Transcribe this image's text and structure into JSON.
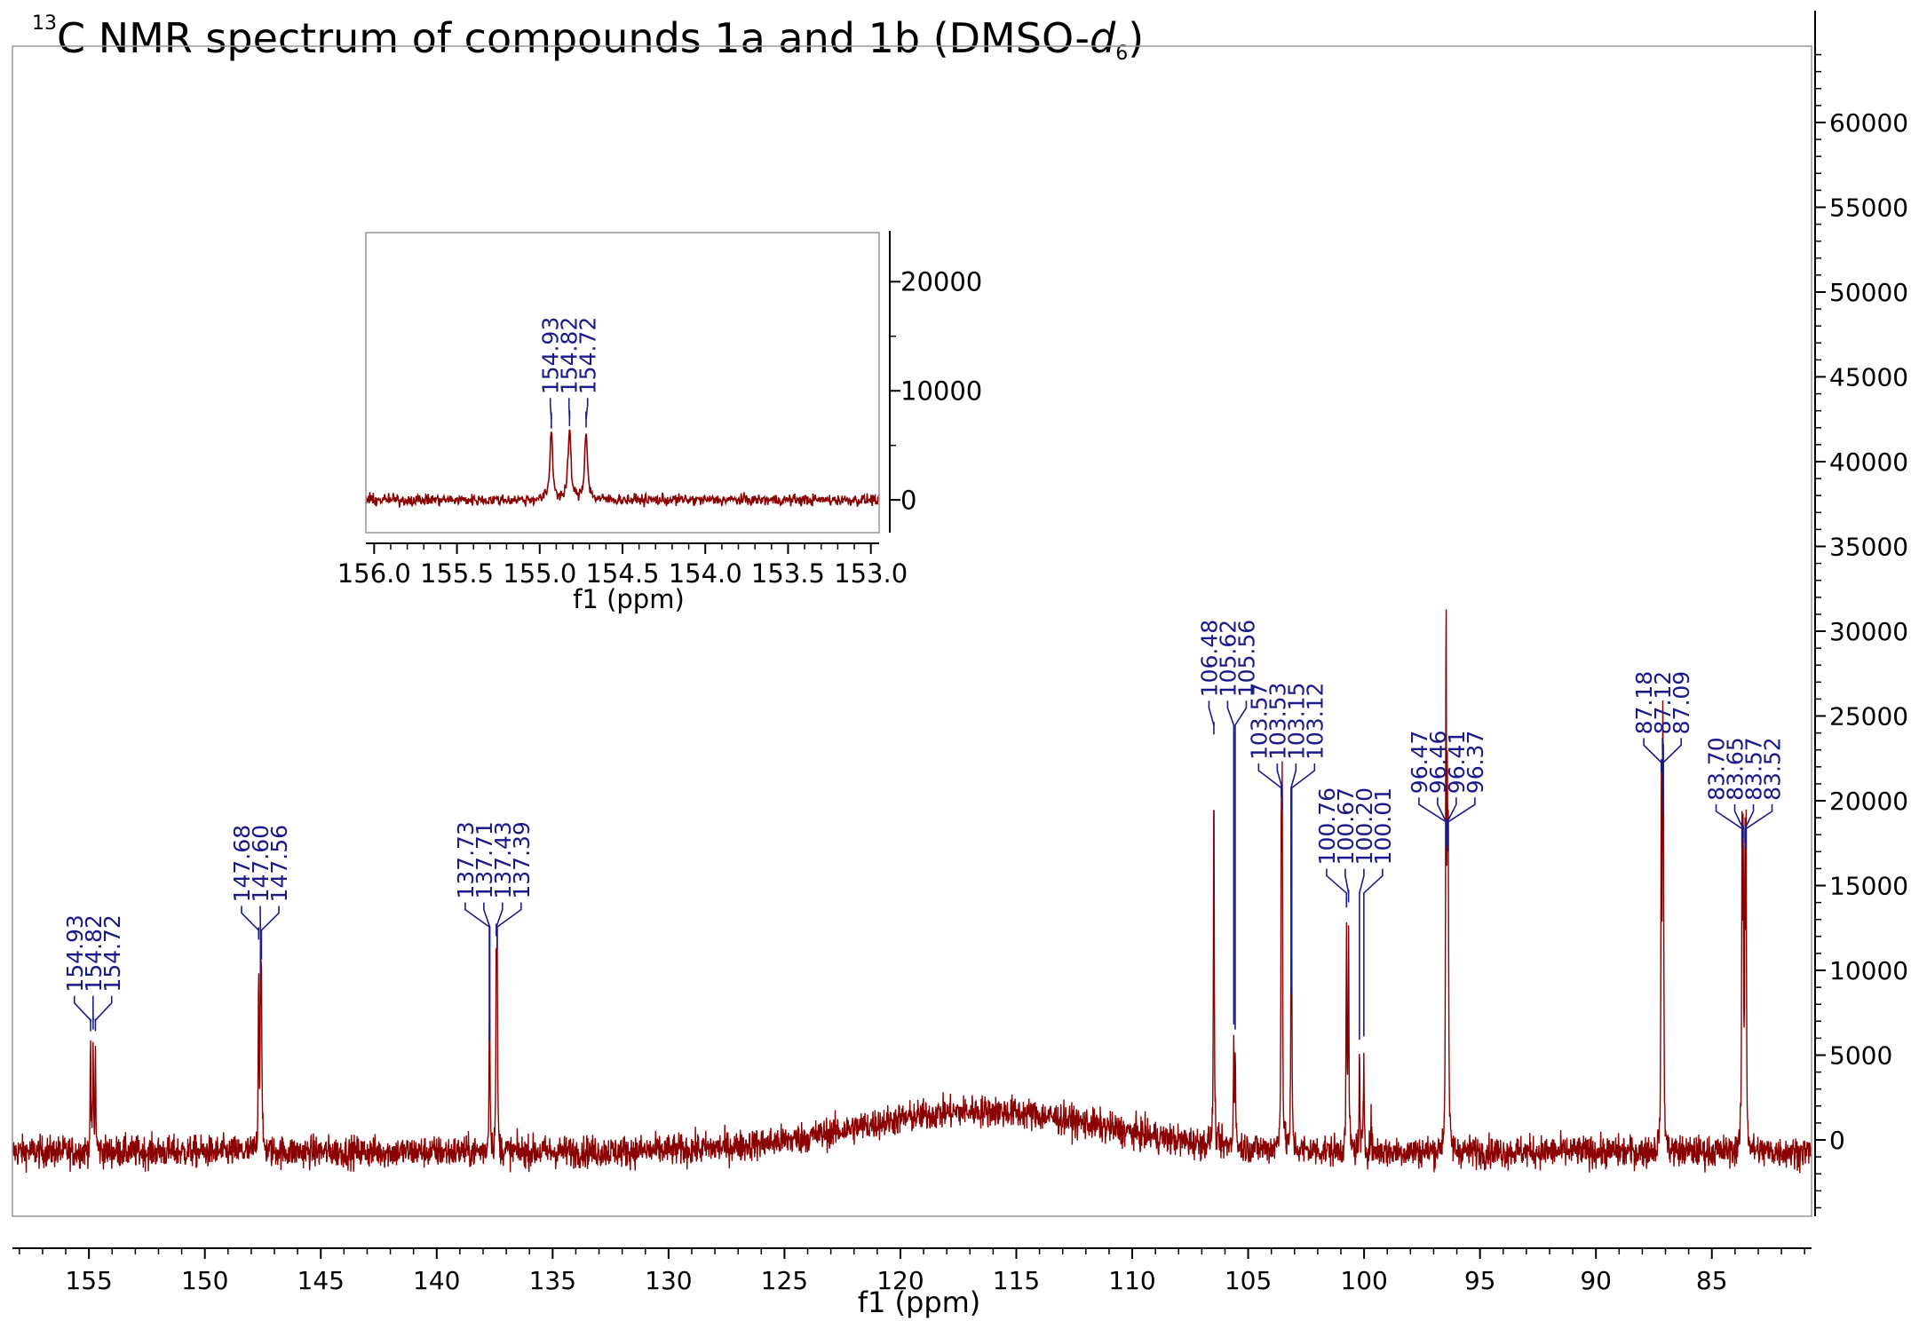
{
  "title": {
    "superscript": "13",
    "main": "C NMR spectrum of compounds 1a and 1b (DMSO-",
    "italic": "d",
    "subscript": "6",
    "close": ")"
  },
  "colors": {
    "spectrum": "#8b0000",
    "peak_labels": "#1a1a8c",
    "axis": "#000000"
  },
  "chart_data": [
    {
      "type": "line",
      "name": "main-spectrum",
      "xlabel": "f1 (ppm)",
      "ylabel": "",
      "x_reversed": true,
      "xlim": [
        158.3,
        80.7
      ],
      "ylim": [
        -4500,
        64500
      ],
      "x_ticks": [
        155,
        150,
        145,
        140,
        135,
        130,
        125,
        120,
        115,
        110,
        105,
        100,
        95,
        90,
        85
      ],
      "y_ticks": [
        0,
        5000,
        10000,
        15000,
        20000,
        25000,
        30000,
        35000,
        40000,
        45000,
        50000,
        55000,
        60000
      ],
      "baseline": {
        "noise": 900,
        "hump_center": 116.5,
        "hump_height": 2400,
        "hump_width": 7.5
      },
      "peaks": [
        {
          "ppm": 154.93,
          "height": 6200
        },
        {
          "ppm": 154.82,
          "height": 6300
        },
        {
          "ppm": 154.72,
          "height": 6200
        },
        {
          "ppm": 147.68,
          "height": 11600
        },
        {
          "ppm": 147.6,
          "height": 9200
        },
        {
          "ppm": 147.56,
          "height": 10400
        },
        {
          "ppm": 137.73,
          "height": 5600
        },
        {
          "ppm": 137.71,
          "height": 5800
        },
        {
          "ppm": 137.43,
          "height": 11800
        },
        {
          "ppm": 137.39,
          "height": 11000
        },
        {
          "ppm": 106.48,
          "height": 23700
        },
        {
          "ppm": 105.62,
          "height": 6600
        },
        {
          "ppm": 105.56,
          "height": 6300
        },
        {
          "ppm": 103.57,
          "height": 20000
        },
        {
          "ppm": 103.53,
          "height": 19200
        },
        {
          "ppm": 103.15,
          "height": 9200
        },
        {
          "ppm": 103.12,
          "height": 8400
        },
        {
          "ppm": 100.76,
          "height": 13500
        },
        {
          "ppm": 100.67,
          "height": 13800
        },
        {
          "ppm": 100.2,
          "height": 5700
        },
        {
          "ppm": 100.01,
          "height": 5900
        },
        {
          "ppm": 99.7,
          "height": 2200
        },
        {
          "ppm": 96.47,
          "height": 17600
        },
        {
          "ppm": 96.46,
          "height": 17200
        },
        {
          "ppm": 96.41,
          "height": 18000
        },
        {
          "ppm": 96.37,
          "height": 16800
        },
        {
          "ppm": 87.18,
          "height": 21500
        },
        {
          "ppm": 87.12,
          "height": 20000
        },
        {
          "ppm": 87.09,
          "height": 19000
        },
        {
          "ppm": 83.7,
          "height": 17000
        },
        {
          "ppm": 83.65,
          "height": 17600
        },
        {
          "ppm": 83.57,
          "height": 17300
        },
        {
          "ppm": 83.52,
          "height": 16900
        }
      ],
      "peak_label_groups": [
        {
          "labels": [
            "154.93",
            "154.82",
            "154.72"
          ]
        },
        {
          "labels": [
            "147.68",
            "147.60",
            "147.56"
          ]
        },
        {
          "labels": [
            "137.73",
            "137.71",
            "137.43",
            "137.39"
          ]
        },
        {
          "labels": [
            "106.48",
            "105.62",
            "105.56"
          ]
        },
        {
          "labels": [
            "103.57",
            "103.53",
            "103.15",
            "103.12"
          ]
        },
        {
          "labels": [
            "100.76",
            "100.67",
            "100.20",
            "100.01"
          ]
        },
        {
          "labels": [
            "96.47",
            "96.46",
            "96.41",
            "96.37"
          ]
        },
        {
          "labels": [
            "87.18",
            "87.12",
            "87.09"
          ]
        },
        {
          "labels": [
            "83.70",
            "83.65",
            "83.57",
            "83.52"
          ]
        }
      ]
    },
    {
      "type": "line",
      "name": "inset-spectrum",
      "xlabel": "f1 (ppm)",
      "ylabel": "",
      "x_reversed": true,
      "xlim": [
        156.05,
        152.95
      ],
      "ylim": [
        -3000,
        24500
      ],
      "x_ticks": [
        "156.0",
        "155.5",
        "155.0",
        "154.5",
        "154.0",
        "153.5",
        "153.0"
      ],
      "y_ticks": [
        0,
        10000,
        20000
      ],
      "baseline": {
        "noise": 500
      },
      "peaks": [
        {
          "ppm": 154.93,
          "height": 6300
        },
        {
          "ppm": 154.82,
          "height": 6500
        },
        {
          "ppm": 154.72,
          "height": 6400
        }
      ],
      "peak_label_groups": [
        {
          "labels": [
            "154.93",
            "154.82",
            "154.72"
          ]
        }
      ]
    }
  ]
}
